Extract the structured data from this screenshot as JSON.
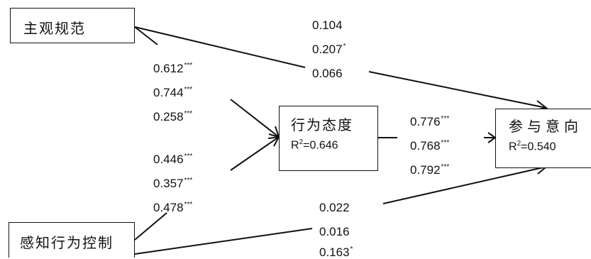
{
  "nodes": {
    "subjective_norm": {
      "label": "主观规范"
    },
    "attitude": {
      "label": "行为态度",
      "r2_prefix": "R",
      "r2_exp": "2",
      "r2_value": "=0.646"
    },
    "intention": {
      "label": "参与意向",
      "r2_prefix": "R",
      "r2_exp": "2",
      "r2_value": "=0.540"
    },
    "pbc": {
      "label": "感知行为控制"
    }
  },
  "paths": {
    "norm_to_intention": [
      {
        "value": "0.104",
        "sig": ""
      },
      {
        "value": "0.207",
        "sig": "*"
      },
      {
        "value": "0.066",
        "sig": ""
      }
    ],
    "norm_to_attitude": [
      {
        "value": "0.612",
        "sig": "***"
      },
      {
        "value": "0.744",
        "sig": "***"
      },
      {
        "value": "0.258",
        "sig": "***"
      }
    ],
    "pbc_to_attitude": [
      {
        "value": "0.446",
        "sig": "***"
      },
      {
        "value": "0.357",
        "sig": "***"
      },
      {
        "value": "0.478",
        "sig": "***"
      }
    ],
    "attitude_to_intention": [
      {
        "value": "0.776",
        "sig": "***"
      },
      {
        "value": "0.768",
        "sig": "***"
      },
      {
        "value": "0.792",
        "sig": "***"
      }
    ],
    "pbc_to_intention": [
      {
        "value": "0.022",
        "sig": ""
      },
      {
        "value": "0.016",
        "sig": ""
      },
      {
        "value": "0.163",
        "sig": "*"
      }
    ]
  }
}
